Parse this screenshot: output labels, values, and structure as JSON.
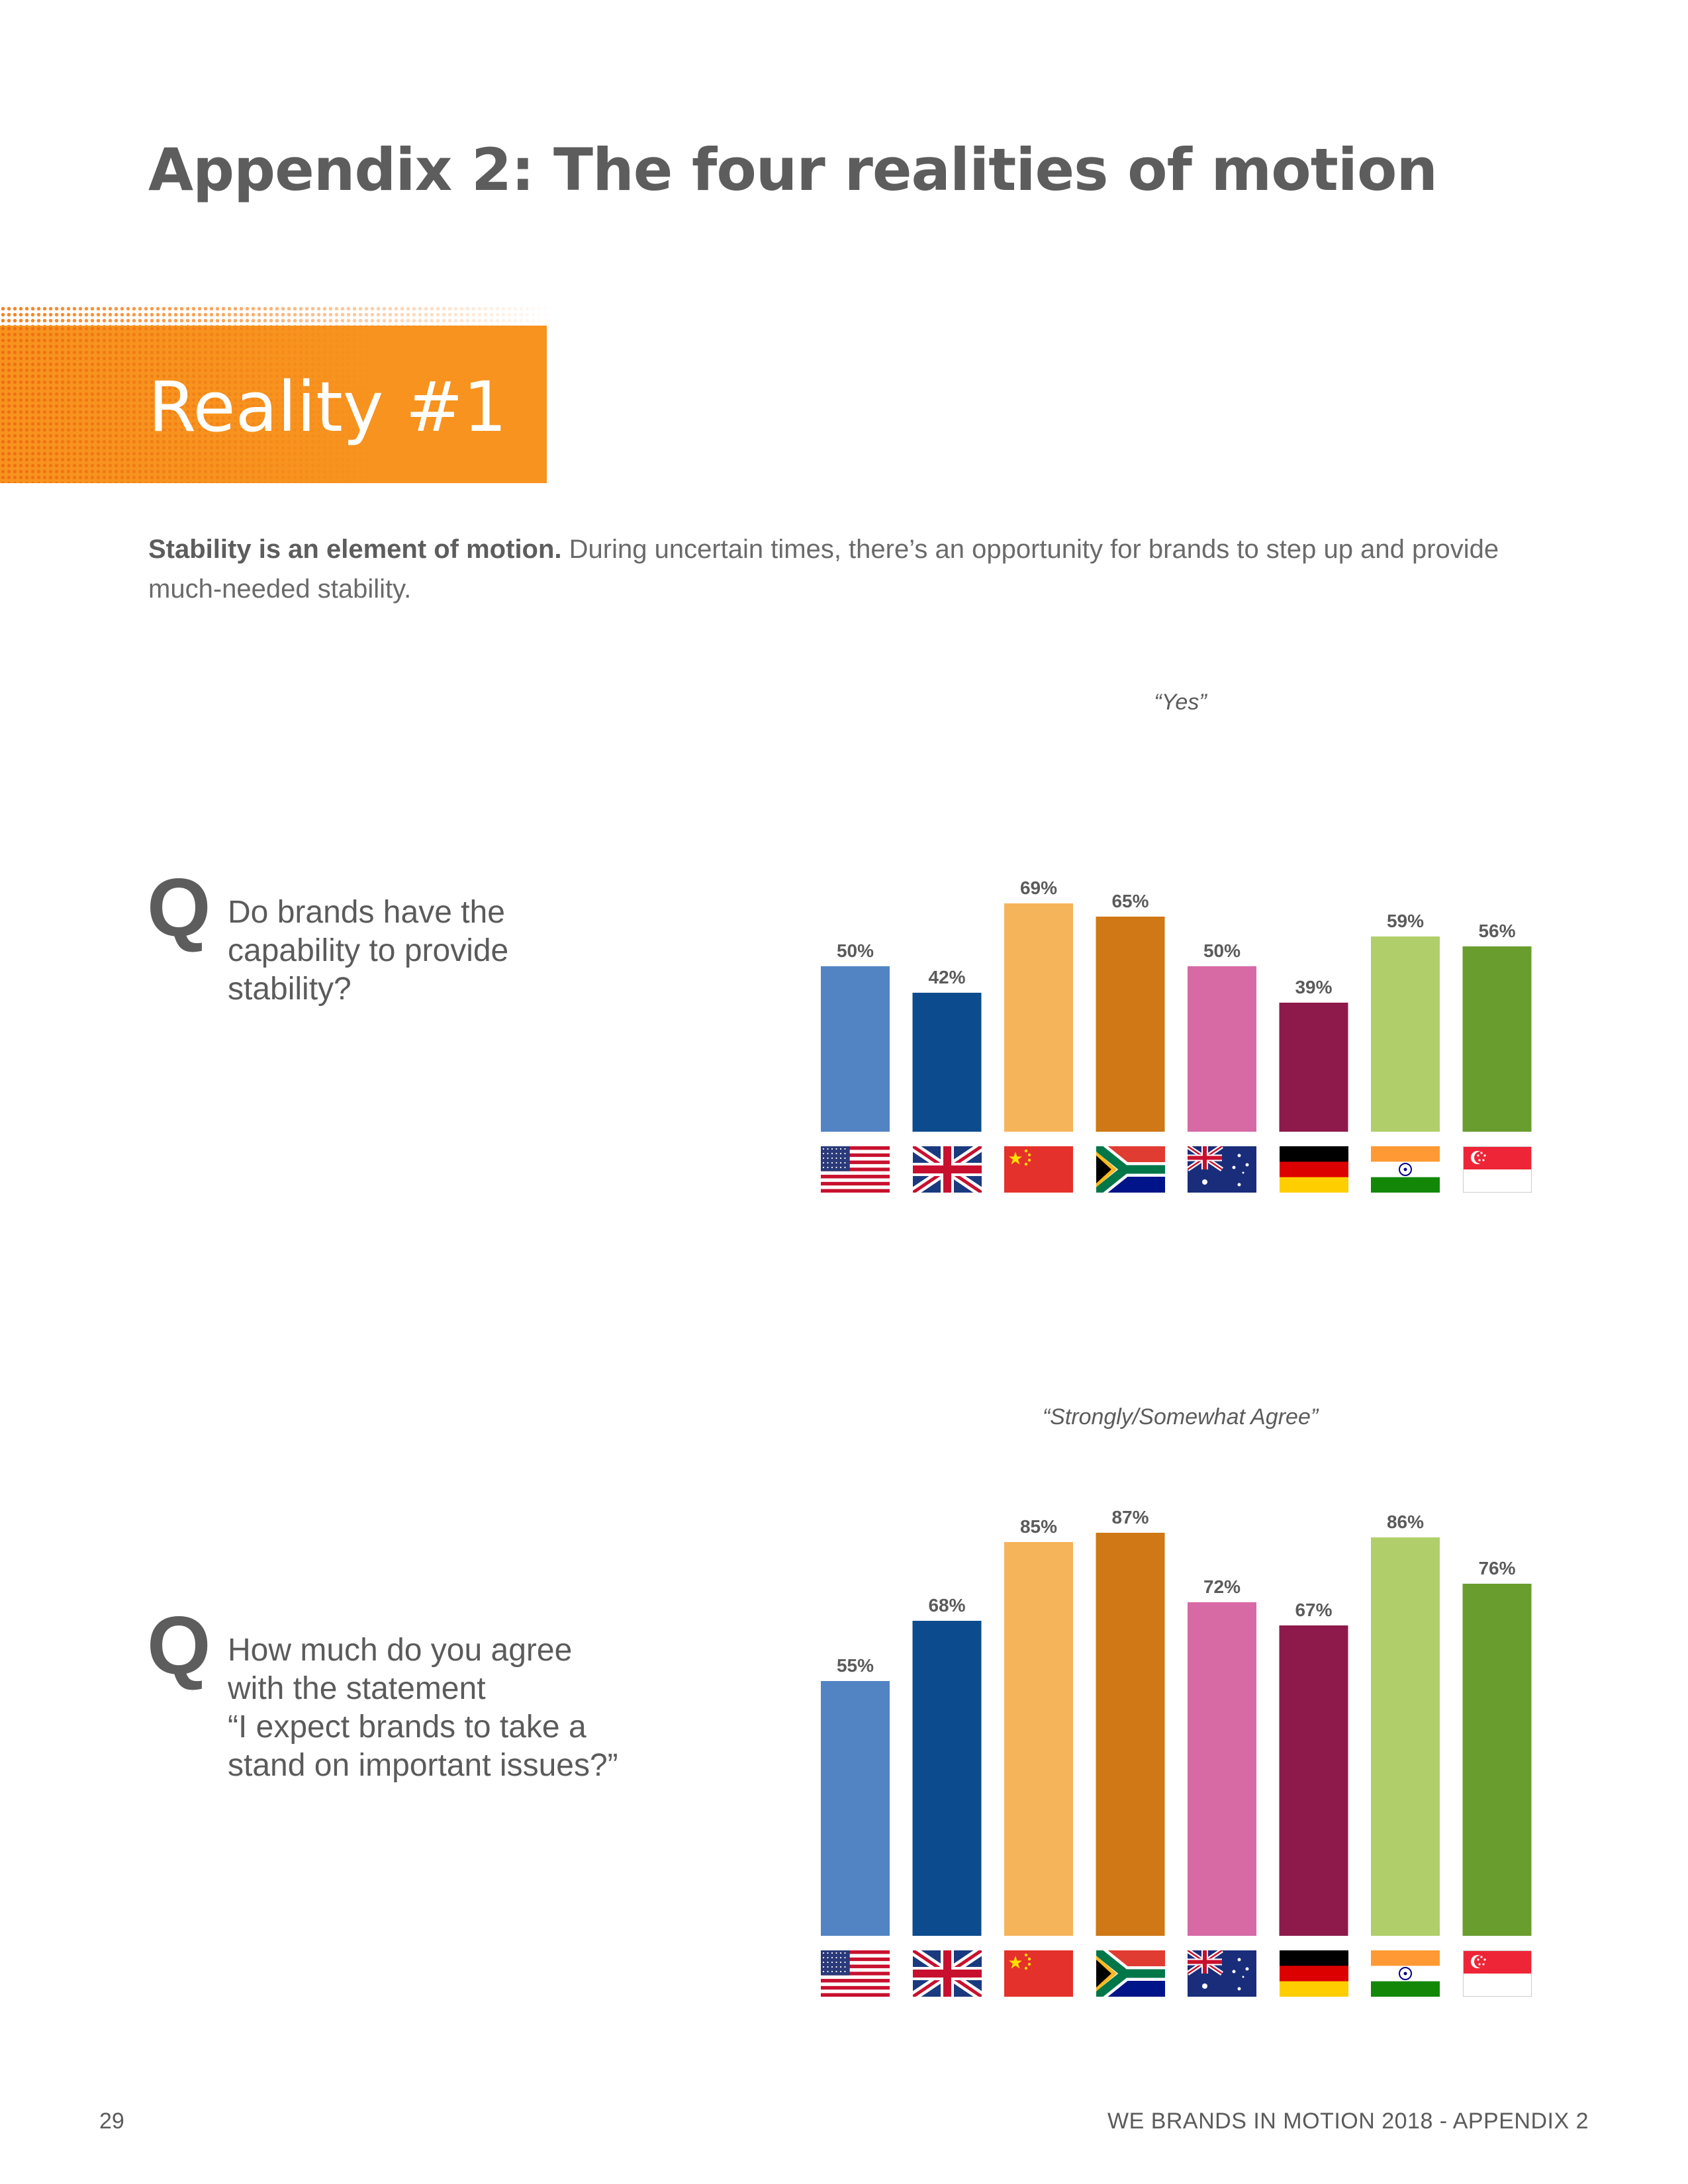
{
  "page": {
    "title": "Appendix 2: The four realities of motion",
    "banner": "Reality #1",
    "intro_bold": "Stability is an element of motion.",
    "intro_text": " During uncertain times, there’s an opportunity for brands to step up and provide much-needed stability.",
    "footer_page": "29",
    "footer_title": "WE BRANDS IN MOTION 2018 - APPENDIX 2"
  },
  "countries": [
    {
      "name": "United States",
      "flag": "us-flag-icon"
    },
    {
      "name": "United Kingdom",
      "flag": "uk-flag-icon"
    },
    {
      "name": "China",
      "flag": "china-flag-icon"
    },
    {
      "name": "South Africa",
      "flag": "south-africa-flag-icon"
    },
    {
      "name": "Australia",
      "flag": "australia-flag-icon"
    },
    {
      "name": "Germany",
      "flag": "germany-flag-icon"
    },
    {
      "name": "India",
      "flag": "india-flag-icon"
    },
    {
      "name": "Singapore",
      "flag": "singapore-flag-icon"
    }
  ],
  "colors": [
    "#5284c4",
    "#0c4c8e",
    "#f5b45a",
    "#cf7815",
    "#d76aa5",
    "#8e1a4b",
    "#b0cf6b",
    "#699e2f"
  ],
  "questions": [
    {
      "letter": "Q",
      "text": "Do brands have the\ncapability to provide\nstability?"
    },
    {
      "letter": "Q",
      "text": "How much do you agree\nwith the statement\n “I expect brands to take a\nstand on important issues?”"
    }
  ],
  "chart_data": [
    {
      "type": "bar",
      "title": "“Yes”",
      "categories": [
        "United States",
        "United Kingdom",
        "China",
        "South Africa",
        "Australia",
        "Germany",
        "India",
        "Singapore"
      ],
      "values": [
        50,
        42,
        69,
        65,
        50,
        39,
        59,
        56
      ],
      "labels": [
        "50%",
        "42%",
        "69%",
        "65%",
        "50%",
        "39%",
        "59%",
        "56%"
      ],
      "ylim": [
        0,
        100
      ],
      "xlabel": "",
      "ylabel": ""
    },
    {
      "type": "bar",
      "title": "“Strongly/Somewhat Agree”",
      "categories": [
        "United States",
        "United Kingdom",
        "China",
        "South Africa",
        "Australia",
        "Germany",
        "India",
        "Singapore"
      ],
      "values": [
        55,
        68,
        85,
        87,
        72,
        67,
        86,
        76
      ],
      "labels": [
        "55%",
        "68%",
        "85%",
        "87%",
        "72%",
        "67%",
        "86%",
        "76%"
      ],
      "ylim": [
        0,
        100
      ],
      "xlabel": "",
      "ylabel": ""
    }
  ]
}
